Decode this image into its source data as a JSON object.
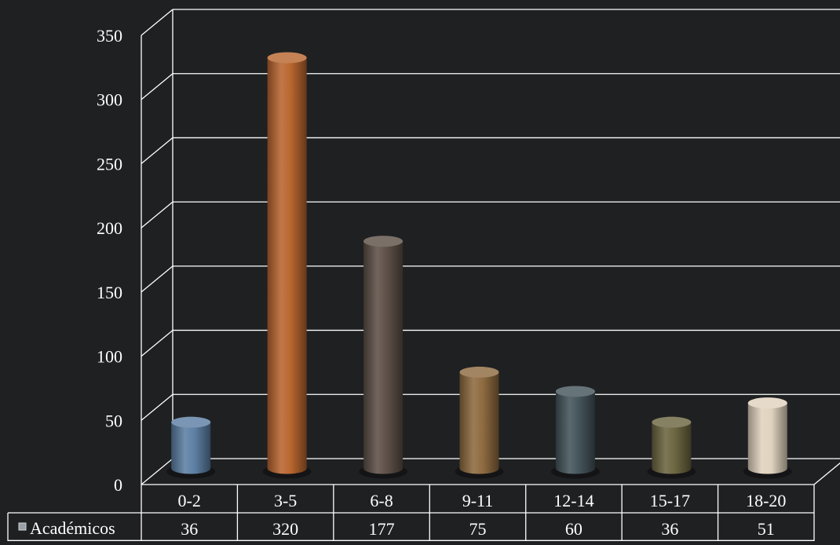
{
  "chart_data": {
    "type": "bar",
    "style": "3d-cylinder with data table",
    "categories": [
      "0-2",
      "3-5",
      "6-8",
      "9-11",
      "12-14",
      "15-17",
      "18-20"
    ],
    "series": [
      {
        "name": "Académicos",
        "values": [
          36,
          320,
          177,
          75,
          60,
          36,
          51
        ]
      }
    ],
    "ylim": [
      0,
      350
    ],
    "yticks": [
      0,
      50,
      100,
      150,
      200,
      250,
      300,
      350
    ],
    "grid": true,
    "legend": "in data table (left)",
    "bar_colors": [
      "#5d7fa3",
      "#b8662f",
      "#5e5047",
      "#8e6a3f",
      "#44545a",
      "#6b6540",
      "#e0d3be"
    ],
    "background": "#1f2022",
    "line_color": "#ffffff"
  }
}
